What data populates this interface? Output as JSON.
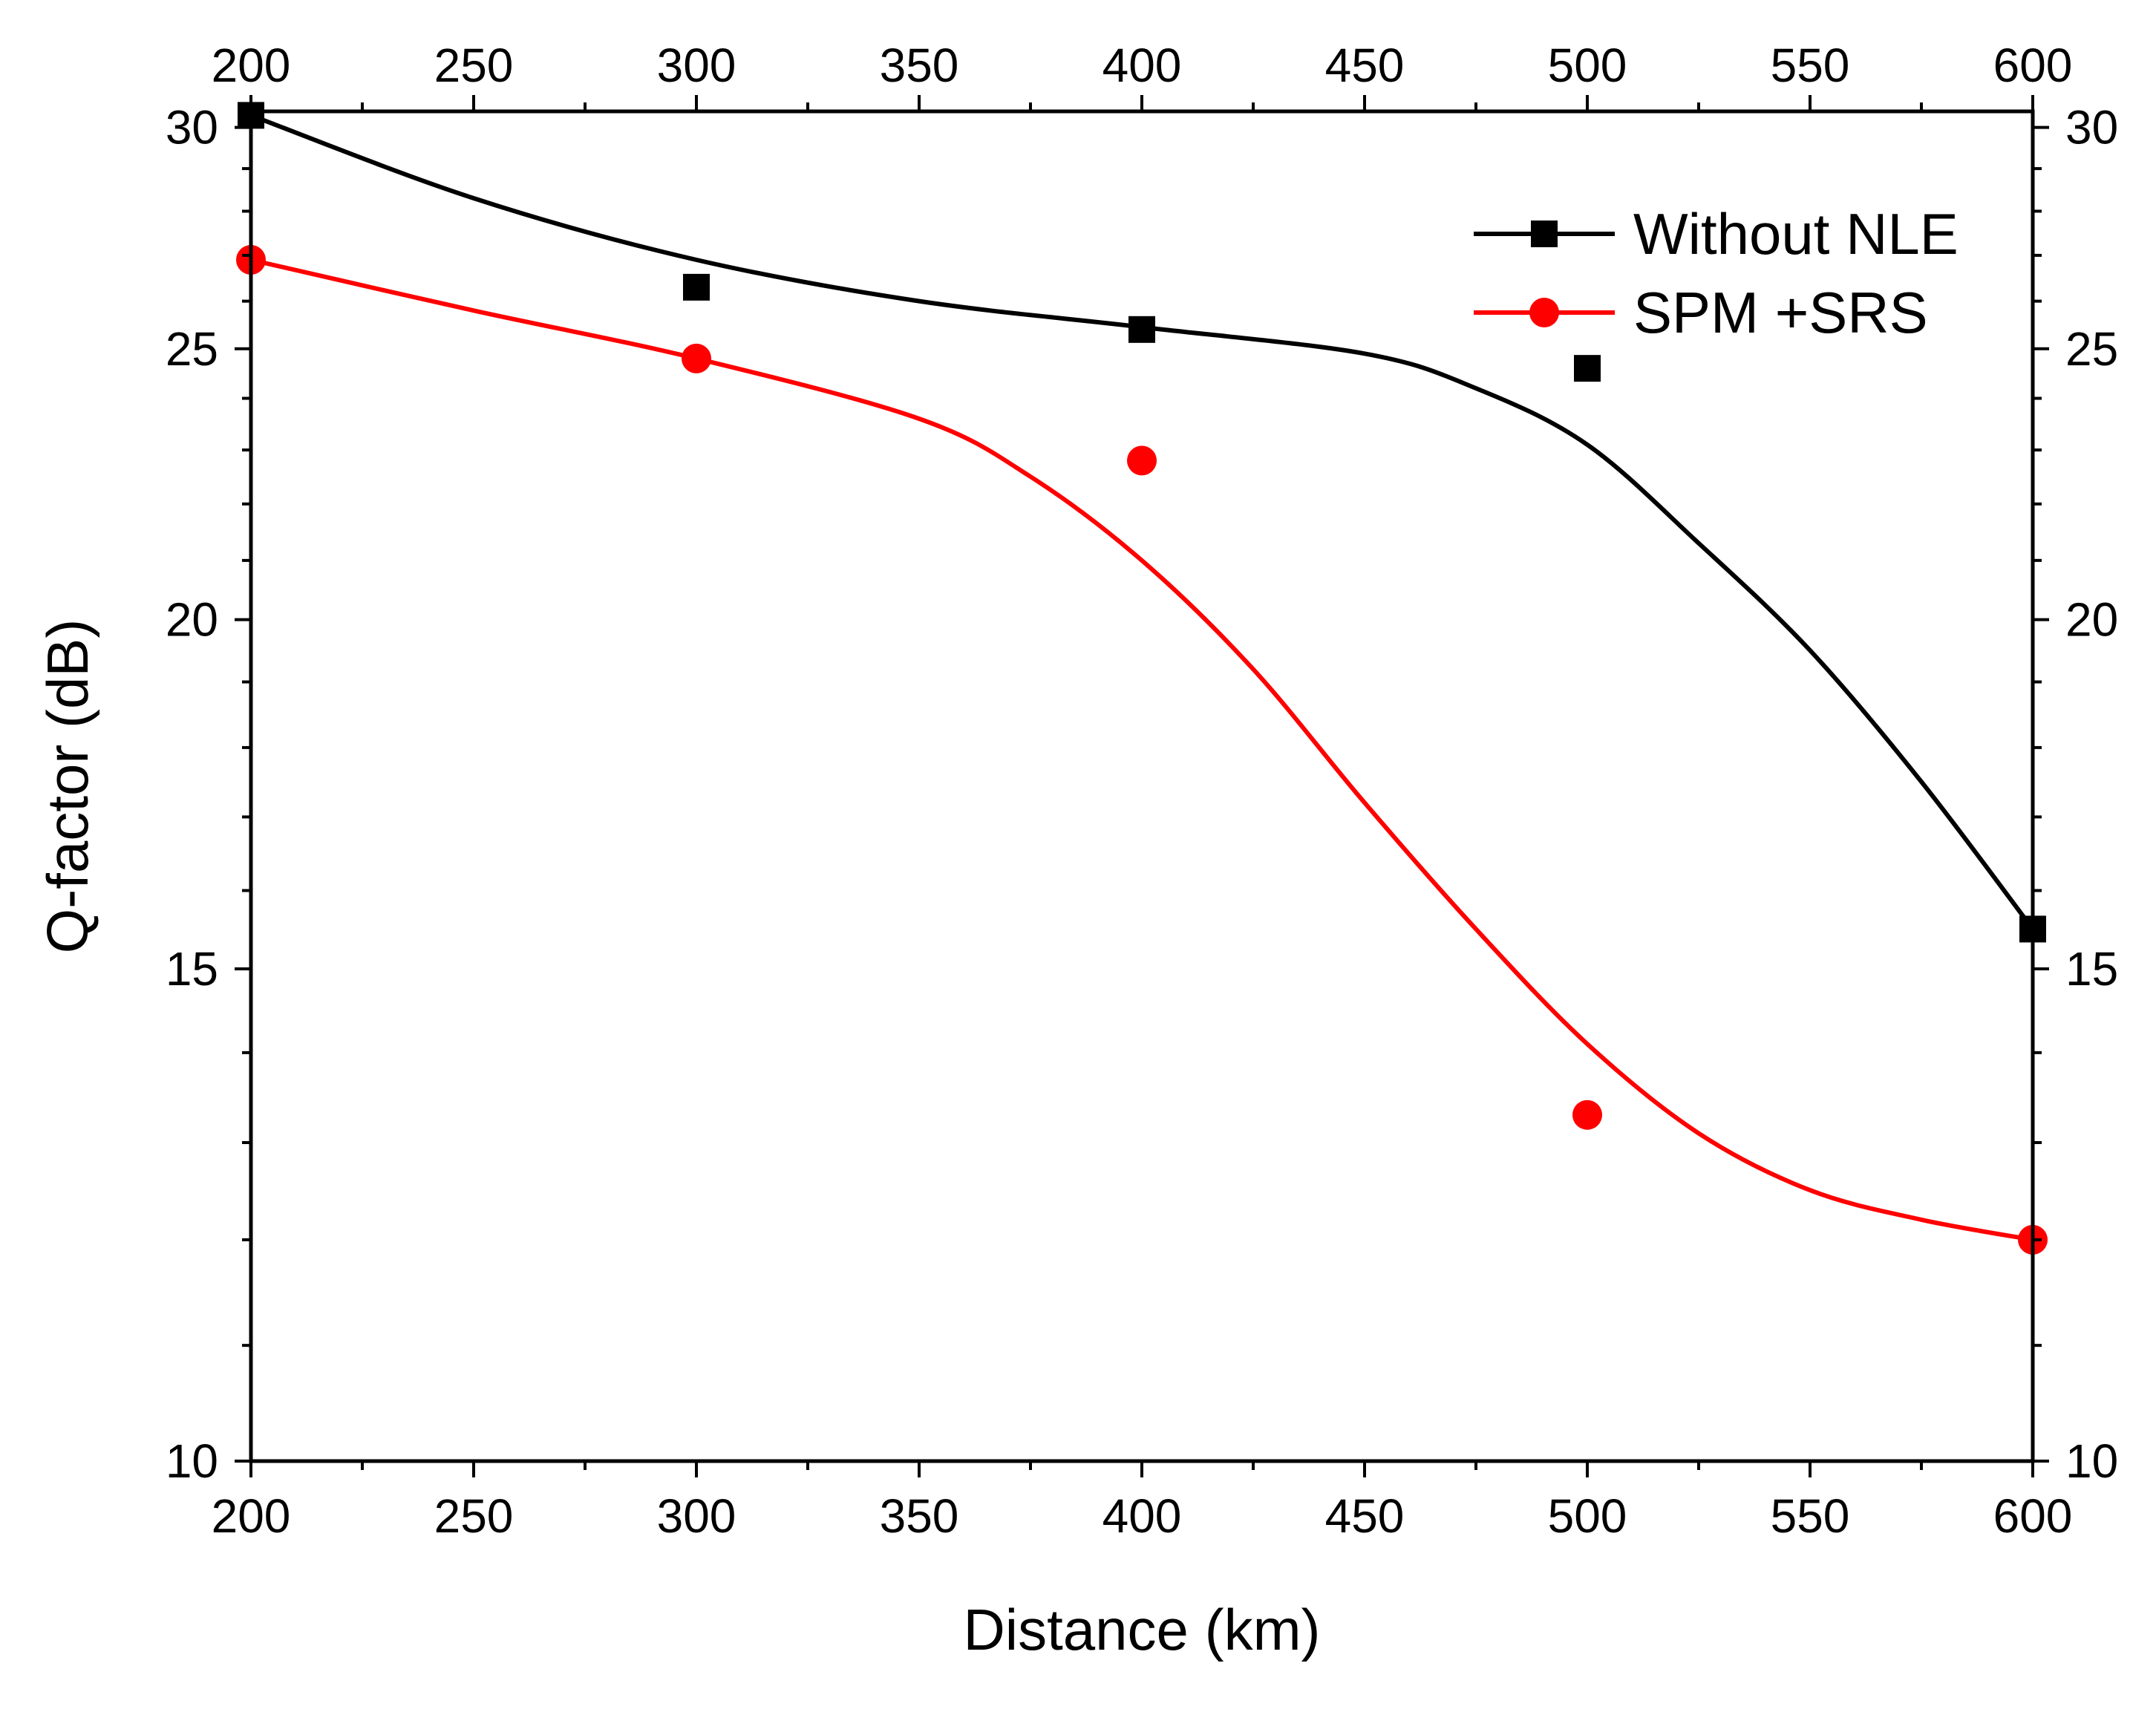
{
  "chart_data": {
    "type": "line",
    "title": "",
    "xlabel": "Distance (km)",
    "ylabel": "Q-factor (dB)",
    "xlim": [
      200,
      600
    ],
    "ylim": [
      10,
      30.4
    ],
    "y_scale": "log",
    "grid": false,
    "x_ticks": [
      200,
      250,
      300,
      350,
      400,
      450,
      500,
      550,
      600
    ],
    "x_tick_labels": [
      "200",
      "250",
      "300",
      "350",
      "400",
      "450",
      "500",
      "550",
      "600"
    ],
    "y_ticks": [
      10,
      15,
      20,
      25,
      30
    ],
    "y_tick_labels": [
      "10",
      "15",
      "20",
      "25",
      "30"
    ],
    "legend_position": "top-right",
    "series": [
      {
        "name": "Without NLE",
        "color": "#000000",
        "marker": "square",
        "points": [
          [
            200,
            30.3
          ],
          [
            300,
            26.3
          ],
          [
            400,
            25.4
          ],
          [
            500,
            24.6
          ],
          [
            600,
            15.5
          ]
        ],
        "curve": [
          [
            200,
            30.3
          ],
          [
            250,
            28.3
          ],
          [
            300,
            26.9
          ],
          [
            350,
            26.0
          ],
          [
            400,
            25.45
          ],
          [
            450,
            24.9
          ],
          [
            475,
            24.2
          ],
          [
            500,
            23.1
          ],
          [
            525,
            21.3
          ],
          [
            550,
            19.5
          ],
          [
            575,
            17.5
          ],
          [
            600,
            15.5
          ]
        ]
      },
      {
        "name": "SPM +SRS",
        "color": "#ff0000",
        "marker": "circle",
        "points": [
          [
            200,
            26.9
          ],
          [
            300,
            24.8
          ],
          [
            400,
            22.8
          ],
          [
            500,
            13.3
          ],
          [
            600,
            12.0
          ]
        ],
        "curve": [
          [
            200,
            26.9
          ],
          [
            250,
            25.8
          ],
          [
            300,
            24.8
          ],
          [
            350,
            23.6
          ],
          [
            375,
            22.5
          ],
          [
            400,
            21.0
          ],
          [
            425,
            19.2
          ],
          [
            450,
            17.2
          ],
          [
            475,
            15.5
          ],
          [
            500,
            14.1
          ],
          [
            525,
            13.1
          ],
          [
            550,
            12.5
          ],
          [
            575,
            12.2
          ],
          [
            600,
            12.0
          ]
        ]
      }
    ]
  }
}
